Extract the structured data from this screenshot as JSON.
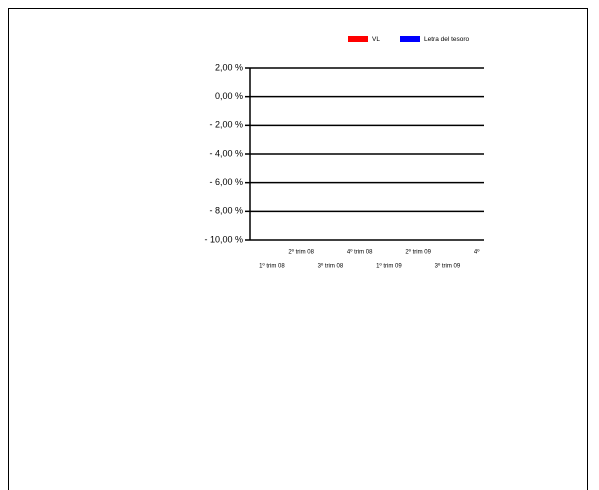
{
  "chart_data": {
    "type": "line",
    "categories": [
      "1º trim 08",
      "2º trim 08",
      "3º trim 08",
      "4º trim 08",
      "1º trim 09",
      "2º trim 09",
      "3º trim 09",
      "4º"
    ],
    "series": [
      {
        "name": "VL",
        "color": "#ff0000",
        "values": [
          null,
          null,
          null,
          null,
          null,
          null,
          null,
          null
        ]
      },
      {
        "name": "Letra del tesoro",
        "color": "#0000ff",
        "values": [
          null,
          null,
          null,
          null,
          null,
          null,
          null,
          null
        ]
      }
    ],
    "ylim": [
      -10,
      2
    ],
    "yticks": [
      {
        "value": 2,
        "label": "2,00 %"
      },
      {
        "value": 0,
        "label": "0,00 %"
      },
      {
        "value": -2,
        "label": "- 2,00 %"
      },
      {
        "value": -4,
        "label": "- 4,00 %"
      },
      {
        "value": -6,
        "label": "- 6,00 %"
      },
      {
        "value": -8,
        "label": "- 8,00 %"
      },
      {
        "value": -10,
        "label": "- 10,00 %"
      }
    ],
    "grid": true,
    "legend": "top-right"
  }
}
